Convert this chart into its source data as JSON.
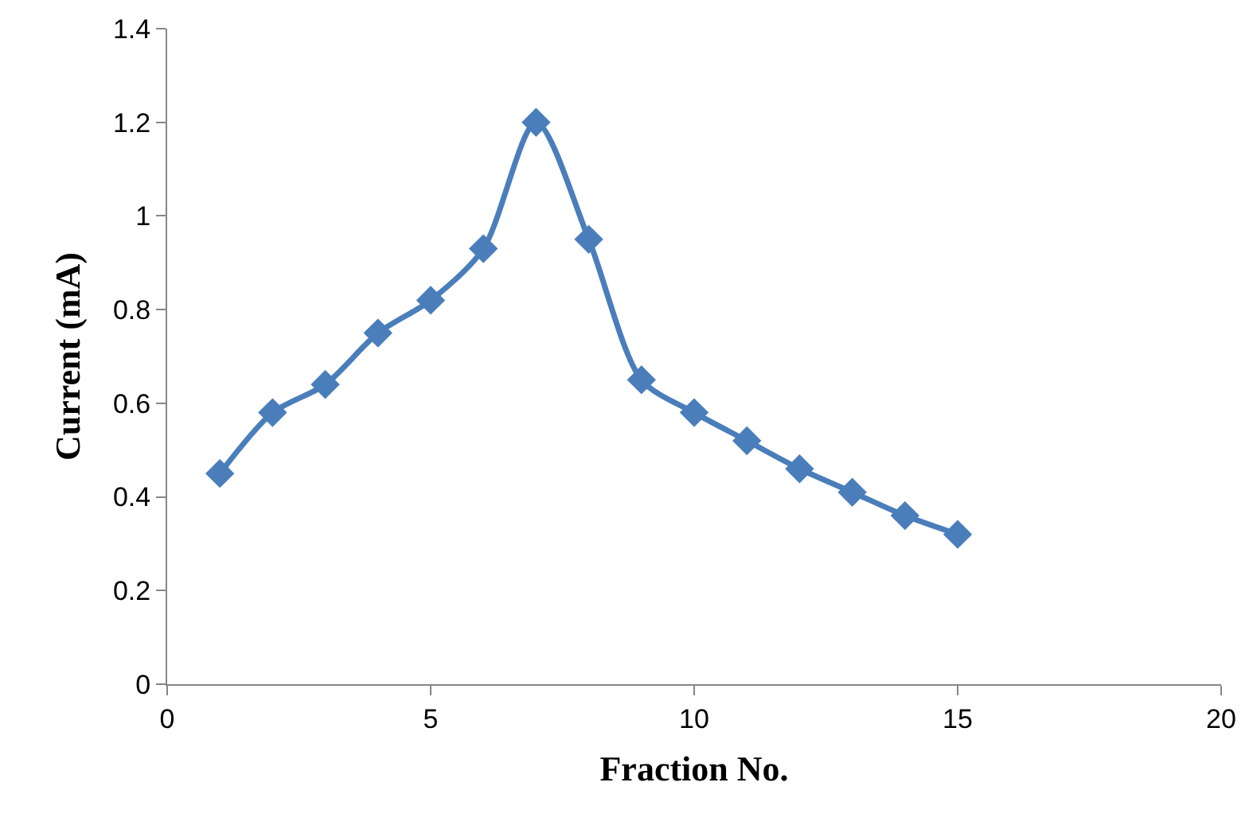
{
  "chart_data": {
    "type": "line",
    "xlabel": "Fraction No.",
    "ylabel": "Current (mA)",
    "x": [
      1,
      2,
      3,
      4,
      5,
      6,
      7,
      8,
      9,
      10,
      11,
      12,
      13,
      14,
      15
    ],
    "series": [
      {
        "color": "#4a7ebb",
        "values": [
          0.45,
          0.58,
          0.64,
          0.75,
          0.82,
          0.93,
          1.2,
          0.95,
          0.65,
          0.58,
          0.52,
          0.46,
          0.41,
          0.36,
          0.32
        ]
      }
    ],
    "xlim": [
      0,
      20
    ],
    "xticks": [
      0,
      5,
      10,
      15,
      20
    ],
    "ylim": [
      0,
      1.4
    ],
    "yticks": [
      0,
      0.2,
      0.4,
      0.6,
      0.8,
      1,
      1.2,
      1.4
    ],
    "grid": false,
    "marker": "diamond",
    "line_style": "solid"
  }
}
